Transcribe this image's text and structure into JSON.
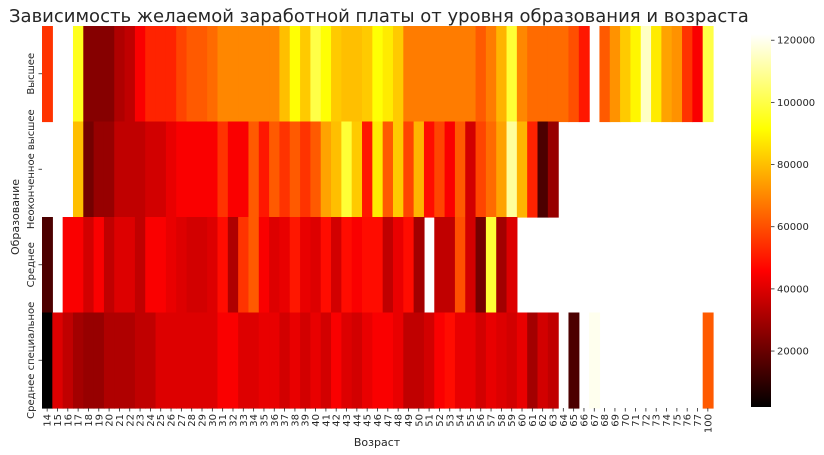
{
  "chart_data": {
    "type": "heatmap",
    "title": "Зависимость желаемой заработной платы от уровня образования и возраста",
    "xlabel": "Возраст",
    "ylabel": "Образование",
    "x_categories": [
      "14",
      "15",
      "16",
      "17",
      "18",
      "19",
      "20",
      "21",
      "22",
      "23",
      "24",
      "25",
      "26",
      "27",
      "28",
      "29",
      "30",
      "31",
      "32",
      "33",
      "34",
      "35",
      "36",
      "37",
      "38",
      "39",
      "40",
      "41",
      "42",
      "43",
      "44",
      "45",
      "46",
      "47",
      "48",
      "49",
      "50",
      "51",
      "52",
      "53",
      "54",
      "55",
      "56",
      "57",
      "58",
      "59",
      "60",
      "61",
      "62",
      "63",
      "64",
      "65",
      "66",
      "67",
      "68",
      "69",
      "70",
      "71",
      "72",
      "73",
      "74",
      "75",
      "76",
      "77",
      "100"
    ],
    "y_categories": [
      "Высшее",
      "Неоконченное высшее",
      "Среднее",
      "Среднее специальное"
    ],
    "colorscale": "hot",
    "colorbar": {
      "min": 2000,
      "max": 122000,
      "ticks": [
        20000,
        40000,
        60000,
        80000,
        100000,
        120000
      ],
      "tick_labels": [
        "20000",
        "40000",
        "60000",
        "80000",
        "100000",
        "120000"
      ]
    },
    "values": [
      [
        55000,
        null,
        null,
        95000,
        25000,
        25000,
        25000,
        32000,
        35000,
        45000,
        52000,
        52000,
        52000,
        58000,
        62000,
        62000,
        65000,
        70000,
        70000,
        70000,
        70000,
        70000,
        70000,
        80000,
        92000,
        82000,
        100000,
        92000,
        82000,
        80000,
        80000,
        82000,
        92000,
        88000,
        82000,
        68000,
        68000,
        68000,
        68000,
        68000,
        68000,
        68000,
        62000,
        68000,
        78000,
        98000,
        70000,
        65000,
        65000,
        65000,
        65000,
        60000,
        50000,
        null,
        62000,
        72000,
        82000,
        90000,
        115000,
        88000,
        75000,
        72000,
        55000,
        45000,
        100000
      ],
      [
        null,
        null,
        null,
        80000,
        22000,
        28000,
        28000,
        35000,
        35000,
        35000,
        38000,
        38000,
        42000,
        45000,
        45000,
        45000,
        45000,
        55000,
        45000,
        45000,
        62000,
        50000,
        62000,
        55000,
        62000,
        55000,
        62000,
        75000,
        80000,
        98000,
        82000,
        50000,
        88000,
        62000,
        82000,
        58000,
        78000,
        48000,
        58000,
        45000,
        62000,
        38000,
        58000,
        65000,
        75000,
        110000,
        78000,
        52000,
        15000,
        28000,
        null,
        null,
        null,
        null,
        null,
        null,
        null,
        null,
        null,
        null,
        null,
        null,
        null,
        null,
        null
      ],
      [
        15000,
        null,
        45000,
        45000,
        38000,
        45000,
        35000,
        40000,
        40000,
        35000,
        45000,
        45000,
        42000,
        40000,
        38000,
        38000,
        40000,
        48000,
        32000,
        55000,
        62000,
        45000,
        40000,
        42000,
        50000,
        42000,
        40000,
        48000,
        38000,
        48000,
        45000,
        48000,
        48000,
        35000,
        42000,
        48000,
        30000,
        null,
        35000,
        35000,
        60000,
        38000,
        22000,
        98000,
        30000,
        40000,
        null,
        null,
        null,
        null,
        null,
        null,
        null,
        null,
        null,
        null,
        null,
        null,
        null,
        null,
        null,
        null,
        null,
        null,
        null
      ],
      [
        2000,
        40000,
        35000,
        30000,
        28000,
        28000,
        32000,
        32000,
        32000,
        35000,
        35000,
        40000,
        40000,
        40000,
        40000,
        40000,
        40000,
        45000,
        45000,
        40000,
        40000,
        42000,
        42000,
        38000,
        42000,
        38000,
        42000,
        38000,
        45000,
        40000,
        38000,
        42000,
        45000,
        45000,
        42000,
        35000,
        35000,
        38000,
        45000,
        48000,
        42000,
        42000,
        38000,
        42000,
        40000,
        38000,
        42000,
        30000,
        38000,
        35000,
        null,
        15000,
        null,
        120000,
        null,
        null,
        null,
        null,
        null,
        null,
        null,
        null,
        null,
        null,
        62000
      ]
    ]
  }
}
